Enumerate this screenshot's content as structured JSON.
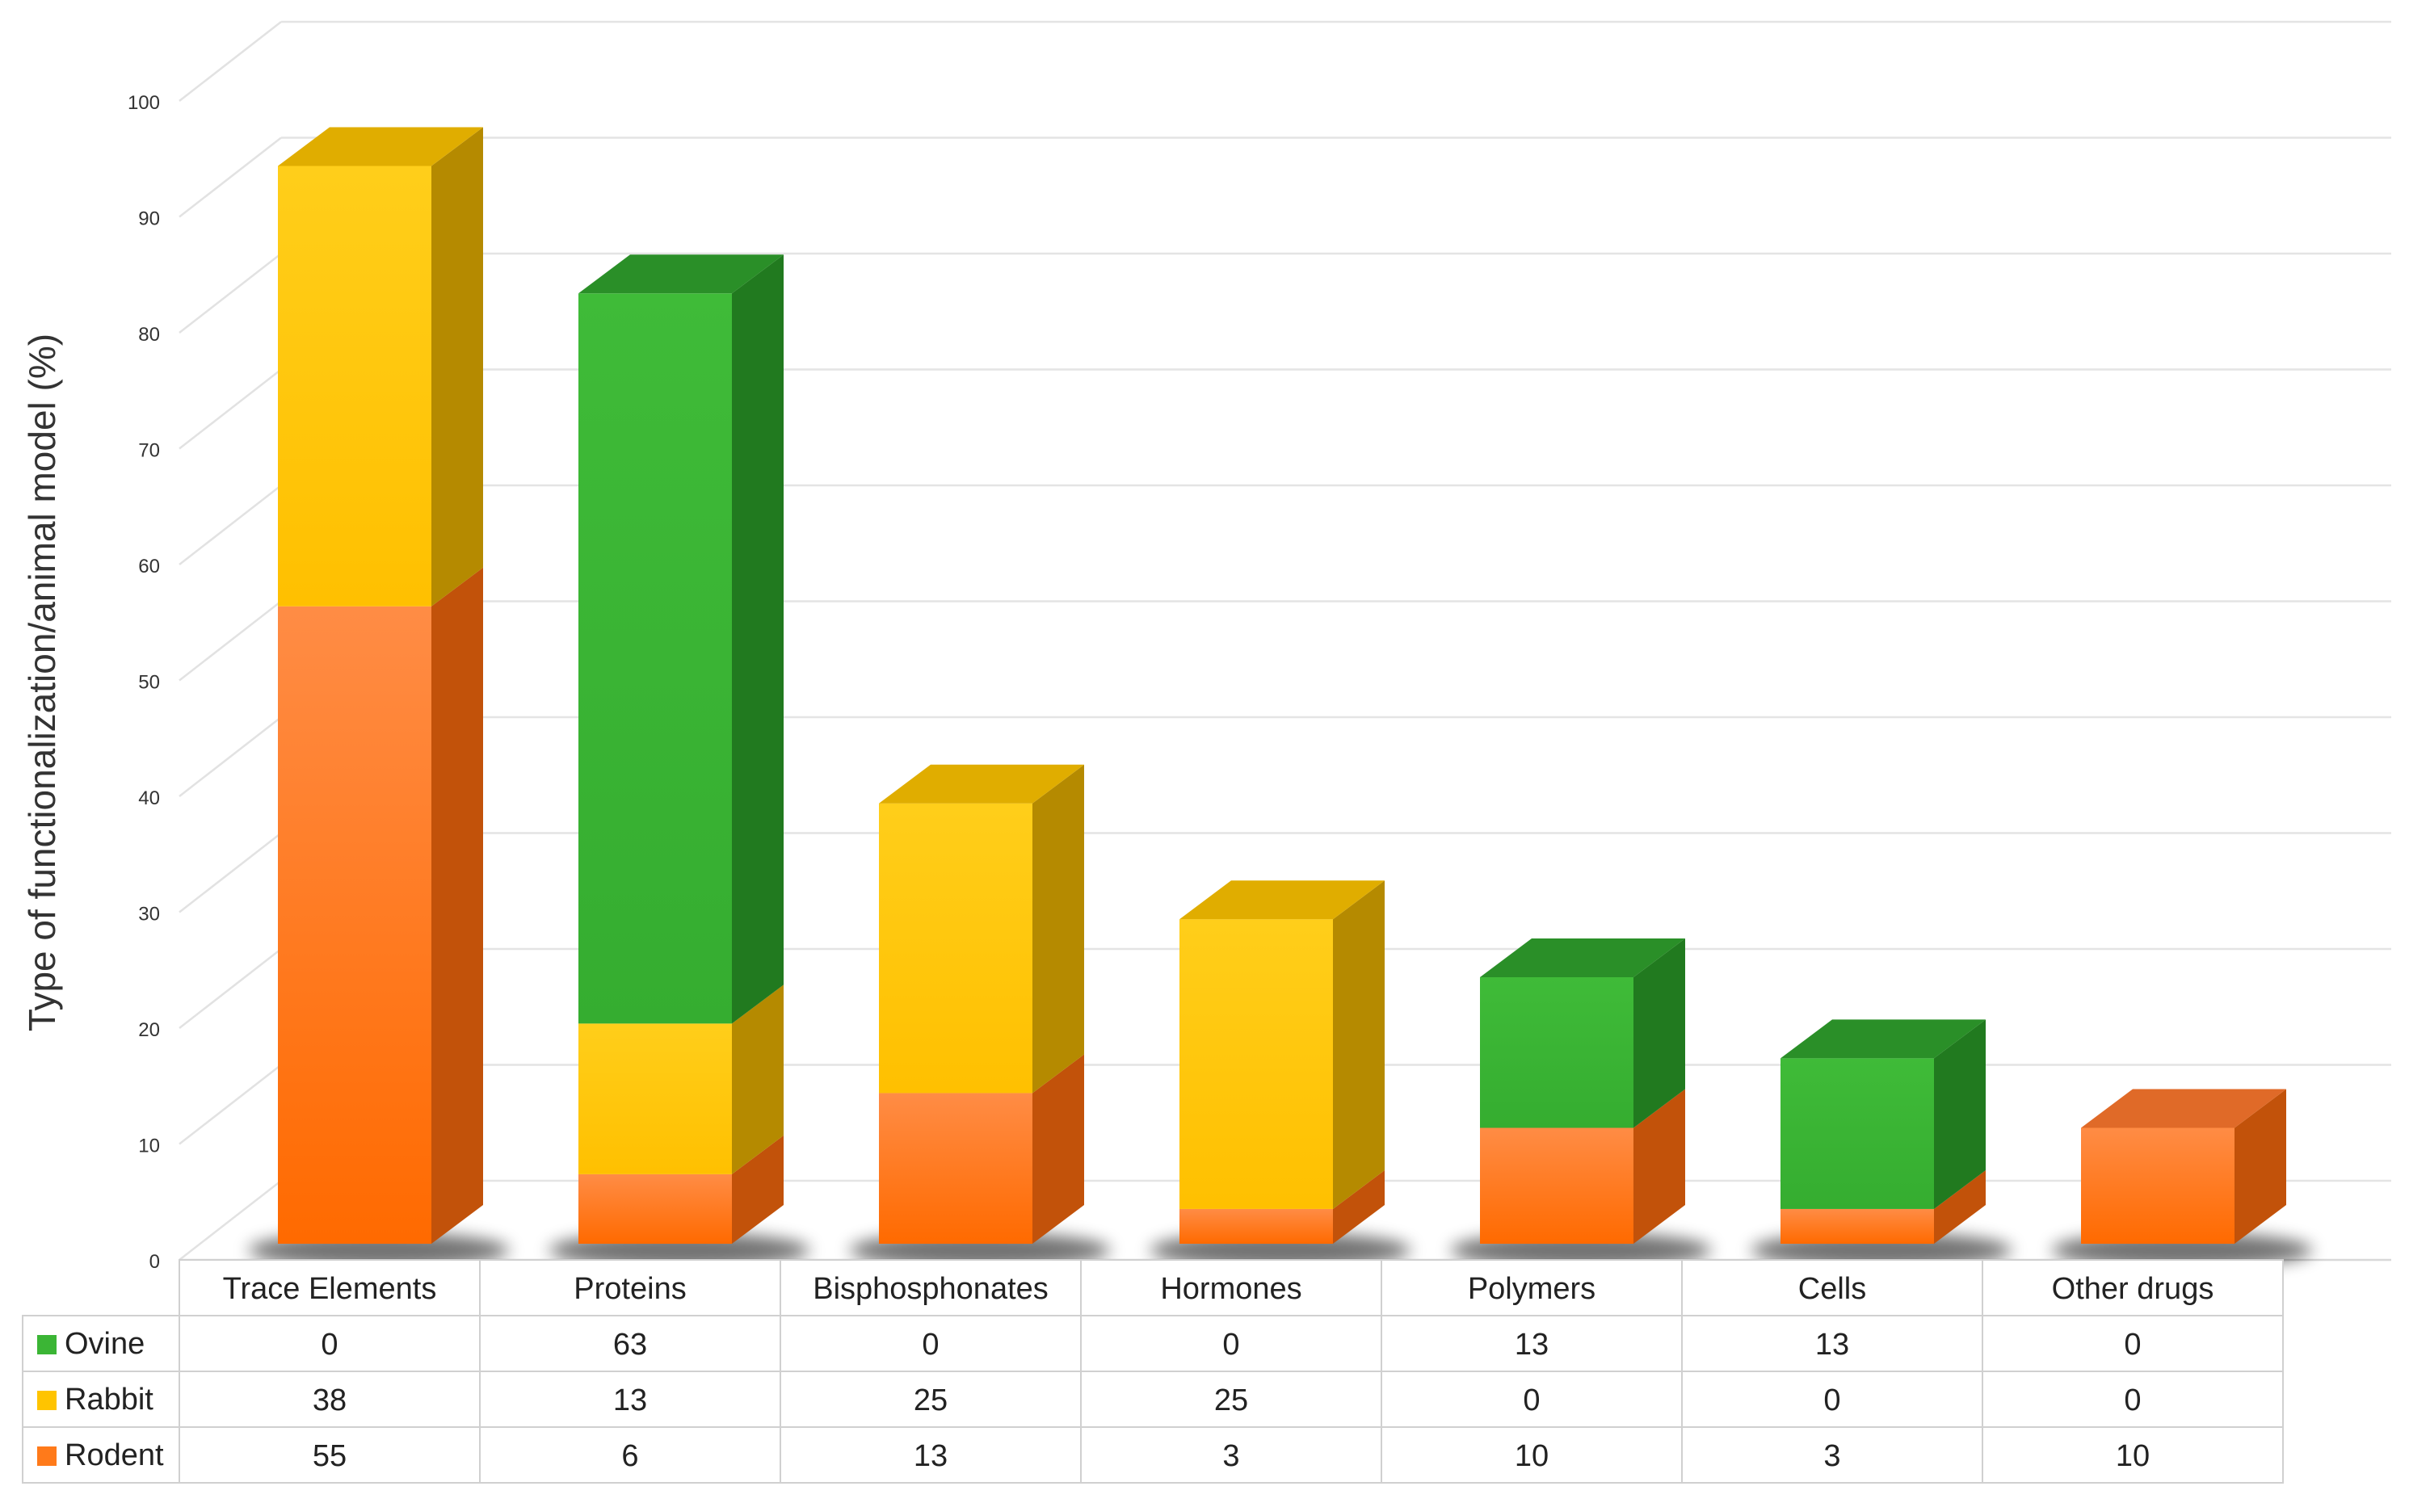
{
  "chart_data": {
    "type": "bar",
    "stacked": true,
    "three_d": true,
    "title": "",
    "xlabel": "",
    "ylabel": "Type of functionalization/animal model (%)",
    "ylim": [
      0,
      100
    ],
    "yticks": [
      "0",
      "10",
      "20",
      "30",
      "40",
      "50",
      "60",
      "70",
      "80",
      "90",
      "100"
    ],
    "grid": true,
    "legend": "data-table-left",
    "categories": [
      "Trace Elements",
      "Proteins",
      "Bisphosphonates",
      "Hormones",
      "Polymers",
      "Cells",
      "Other drugs"
    ],
    "series": [
      {
        "name": "Ovine",
        "values": [
          0,
          63,
          0,
          0,
          13,
          13,
          0
        ],
        "color": "#3bb535",
        "side_color": "#217a1f",
        "top_color": "#2a8f28"
      },
      {
        "name": "Rabbit",
        "values": [
          38,
          13,
          25,
          25,
          0,
          0,
          0
        ],
        "color": "#ffc400",
        "side_color": "#b58a00",
        "top_color": "#e0ad00"
      },
      {
        "name": "Rodent",
        "values": [
          55,
          6,
          13,
          3,
          10,
          3,
          10
        ],
        "color": "#ff7a1a",
        "side_color": "#c2520a",
        "top_color": "#e06a28"
      }
    ],
    "stack_order_bottom_to_top": [
      "Rodent",
      "Rabbit",
      "Ovine"
    ],
    "table": {
      "header": [
        "Trace Elements",
        "Proteins",
        "Bisphosphonates",
        "Hormones",
        "Polymers",
        "Cells",
        "Other drugs"
      ],
      "rows": [
        {
          "label": "Ovine",
          "cells": [
            "0",
            "63",
            "0",
            "0",
            "13",
            "13",
            "0"
          ]
        },
        {
          "label": "Rabbit",
          "cells": [
            "38",
            "13",
            "25",
            "25",
            "0",
            "0",
            "0"
          ]
        },
        {
          "label": "Rodent",
          "cells": [
            "55",
            "6",
            "13",
            "3",
            "10",
            "3",
            "10"
          ]
        }
      ]
    }
  }
}
